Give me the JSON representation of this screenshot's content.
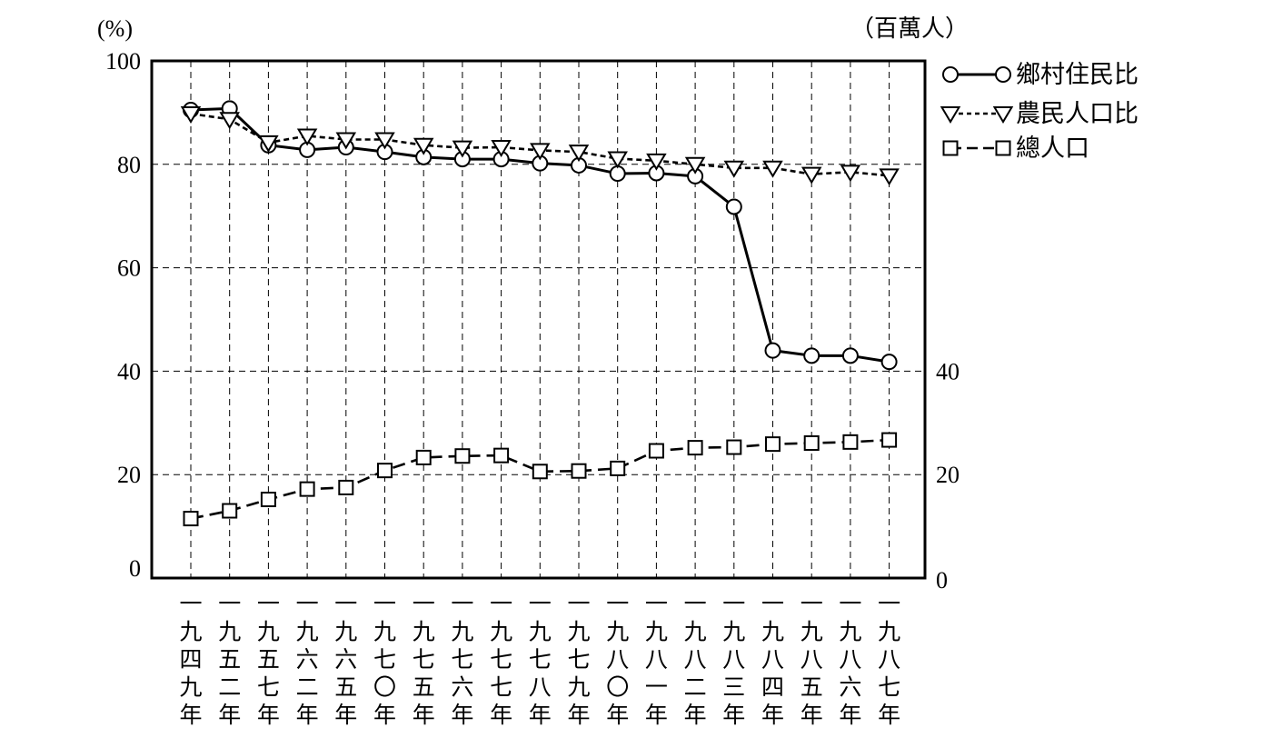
{
  "chart_data": {
    "type": "line",
    "categories": [
      "一九四九年",
      "一九五二年",
      "一九五七年",
      "一九六二年",
      "一九六五年",
      "一九七〇年",
      "一九七五年",
      "一九七六年",
      "一九七七年",
      "一九七八年",
      "一九七九年",
      "一九八〇年",
      "一九八一年",
      "一九八二年",
      "一九八三年",
      "一九八四年",
      "一九八五年",
      "一九八六年",
      "一九八七年"
    ],
    "left_axis": {
      "unit": "(%)",
      "ylim": [
        0,
        100
      ],
      "ticks": [
        "0",
        "20",
        "40",
        "60",
        "80",
        "100"
      ]
    },
    "right_axis": {
      "unit": "（百萬人）",
      "ylim": [
        0,
        100
      ],
      "ticks": [
        "0",
        "20",
        "40"
      ]
    },
    "grid": true,
    "legend_position": "right",
    "series": [
      {
        "name": "鄉村住民比",
        "marker": "circle",
        "line": "solid",
        "axis": "left",
        "values": [
          90.5,
          90.8,
          83.7,
          82.8,
          83.3,
          82.4,
          81.4,
          81.0,
          81.0,
          80.2,
          79.8,
          78.2,
          78.3,
          77.7,
          71.8,
          44.0,
          43.0,
          43.0,
          41.8
        ]
      },
      {
        "name": "農民人口比",
        "marker": "triangle-down",
        "line": "dotted",
        "axis": "left",
        "values": [
          89.8,
          88.7,
          84.2,
          85.5,
          84.8,
          84.8,
          83.7,
          83.2,
          83.3,
          82.7,
          82.4,
          81.1,
          80.7,
          80.0,
          79.3,
          79.3,
          78.1,
          78.5,
          77.8
        ]
      },
      {
        "name": "總人口",
        "marker": "square",
        "line": "dashed",
        "axis": "right",
        "values": [
          11.5,
          13.0,
          15.2,
          17.2,
          17.5,
          20.8,
          23.3,
          23.6,
          23.7,
          20.6,
          20.7,
          21.2,
          24.6,
          25.2,
          25.3,
          25.9,
          26.1,
          26.3,
          26.7
        ]
      }
    ]
  }
}
